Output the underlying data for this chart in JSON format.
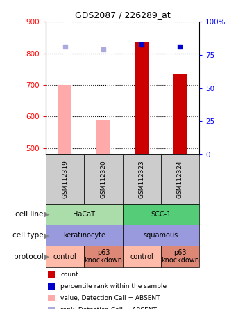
{
  "title": "GDS2087 / 226289_at",
  "samples": [
    "GSM112319",
    "GSM112320",
    "GSM112323",
    "GSM112324"
  ],
  "ylim_left": [
    480,
    900
  ],
  "ylim_right": [
    0,
    100
  ],
  "yticks_left": [
    500,
    600,
    700,
    800,
    900
  ],
  "yticks_right": [
    0,
    25,
    50,
    75,
    100
  ],
  "bar_values": [
    null,
    null,
    835,
    735
  ],
  "bar_color_present": "#cc0000",
  "bar_values_absent": [
    700,
    590,
    null,
    null
  ],
  "bar_color_absent": "#ffaaaa",
  "scatter_rank_present": [
    null,
    null,
    83,
    81
  ],
  "scatter_rank_absent": [
    81,
    79,
    null,
    null
  ],
  "scatter_color_present": "#0000cc",
  "scatter_color_absent": "#aaaadd",
  "row_defs": [
    {
      "label": "cell line",
      "items": [
        {
          "span": [
            0,
            2
          ],
          "text": "HaCaT",
          "color": "#aaddaa"
        },
        {
          "span": [
            2,
            4
          ],
          "text": "SCC-1",
          "color": "#55cc77"
        }
      ]
    },
    {
      "label": "cell type",
      "items": [
        {
          "span": [
            0,
            2
          ],
          "text": "keratinocyte",
          "color": "#9999dd"
        },
        {
          "span": [
            2,
            4
          ],
          "text": "squamous",
          "color": "#9999dd"
        }
      ]
    },
    {
      "label": "protocol",
      "items": [
        {
          "span": [
            0,
            1
          ],
          "text": "control",
          "color": "#ffbbaa"
        },
        {
          "span": [
            1,
            2
          ],
          "text": "p63\nknockdown",
          "color": "#dd8877"
        },
        {
          "span": [
            2,
            3
          ],
          "text": "control",
          "color": "#ffbbaa"
        },
        {
          "span": [
            3,
            4
          ],
          "text": "p63\nknockdown",
          "color": "#dd8877"
        }
      ]
    }
  ],
  "legend_items": [
    {
      "color": "#cc0000",
      "label": "count"
    },
    {
      "color": "#0000cc",
      "label": "percentile rank within the sample"
    },
    {
      "color": "#ffaaaa",
      "label": "value, Detection Call = ABSENT"
    },
    {
      "color": "#aaaadd",
      "label": "rank, Detection Call = ABSENT"
    }
  ]
}
